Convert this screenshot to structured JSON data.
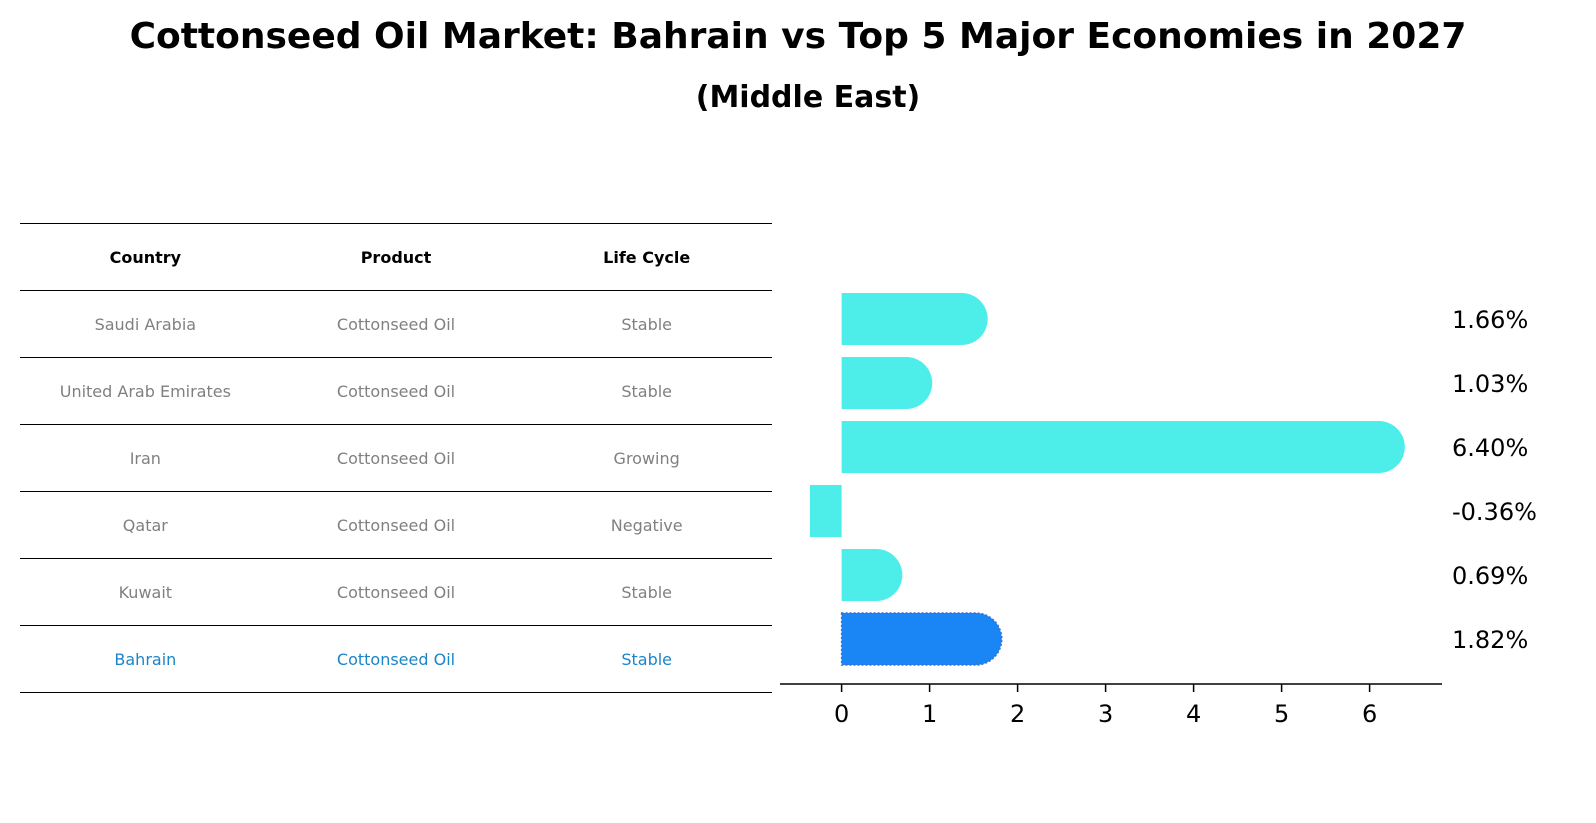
{
  "title": "Cottonseed Oil Market: Bahrain vs Top 5 Major Economies in 2027",
  "subtitle": "(Middle East)",
  "table": {
    "headers": [
      "Country",
      "Product",
      "Life Cycle"
    ],
    "rows": [
      [
        "Saudi Arabia",
        "Cottonseed Oil",
        "Stable"
      ],
      [
        "United Arab Emirates",
        "Cottonseed Oil",
        "Stable"
      ],
      [
        "Iran",
        "Cottonseed Oil",
        "Growing"
      ],
      [
        "Qatar",
        "Cottonseed Oil",
        "Negative"
      ],
      [
        "Kuwait",
        "Cottonseed Oil",
        "Stable"
      ],
      [
        "Bahrain",
        "Cottonseed Oil",
        "Stable"
      ]
    ]
  },
  "chart_data": {
    "type": "bar",
    "orientation": "horizontal",
    "categories": [
      "Saudi Arabia",
      "United Arab Emirates",
      "Iran",
      "Qatar",
      "Kuwait",
      "Bahrain"
    ],
    "values": [
      1.66,
      1.03,
      6.4,
      -0.36,
      0.69,
      1.82
    ],
    "value_labels": [
      "1.66%",
      "1.03%",
      "6.40%",
      "-0.36%",
      "0.69%",
      "1.82%"
    ],
    "highlight": "Bahrain",
    "xlim": [
      -0.7,
      6.8
    ],
    "xticks": [
      0,
      1,
      2,
      3,
      4,
      5,
      6
    ],
    "colors": {
      "default": "#4deeea",
      "highlight": "#1a85f5",
      "highlight_text": "#1a85c8"
    },
    "xlabel": "",
    "ylabel": ""
  }
}
